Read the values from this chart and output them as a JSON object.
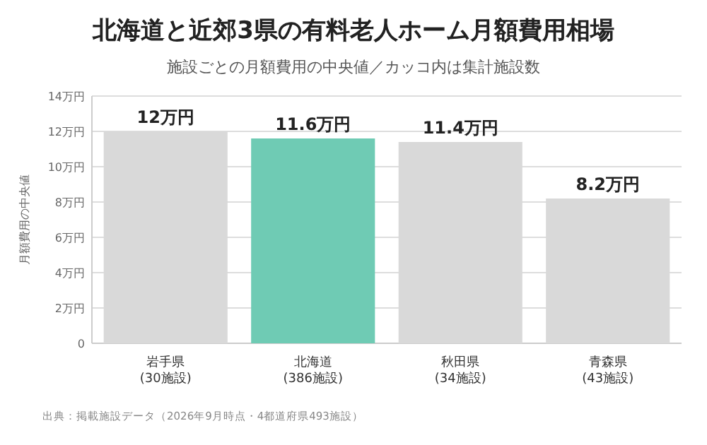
{
  "chart_data": {
    "type": "bar",
    "title": "北海道と近郊3県の有料老人ホーム月額費用相場",
    "subtitle": "施設ごとの月額費用の中央値／カッコ内は集計施設数",
    "ylabel": "月額費用の中央値",
    "categories": [
      "岩手県\n(30施設)",
      "北海道\n(386施設)",
      "秋田県\n(34施設)",
      "青森県\n(43施設)"
    ],
    "values": [
      12,
      11.6,
      11.4,
      8.2
    ],
    "colors": [
      "#d9d9d9",
      "#6fcbb4",
      "#d9d9d9",
      "#d9d9d9"
    ],
    "value_labels": [
      "12万円",
      "11.6万円",
      "11.4万円",
      "8.2万円"
    ],
    "ylim": [
      0,
      14
    ],
    "yticks": [
      0,
      {
        "value": 2,
        "label": "2万円"
      },
      {
        "value": 4,
        "label": "4万円"
      },
      {
        "value": 6,
        "label": "6万円"
      },
      {
        "value": 8,
        "label": "8万円"
      },
      {
        "value": 10,
        "label": "10万円"
      },
      {
        "value": 12,
        "label": "12万円"
      },
      {
        "value": 14,
        "label": "14万円"
      }
    ],
    "grid": "y",
    "annotations": [
      "出典：掲載施設データ（2026年9月時点・4都道府県493施設）"
    ]
  }
}
